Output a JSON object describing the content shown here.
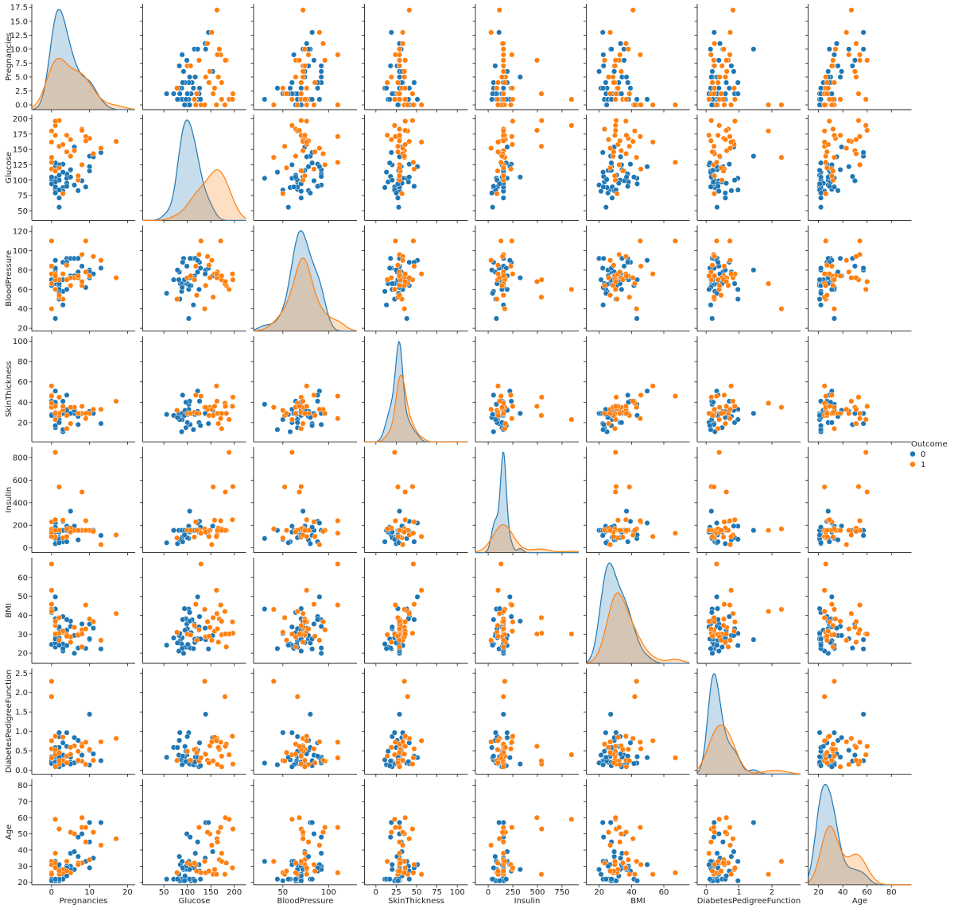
{
  "chart_data": {
    "type": "pairplot",
    "legend_title": "Outcome",
    "variables": [
      {
        "name": "Pregnancies",
        "xlim": [
          -5.2,
          22
        ],
        "xticks": [
          0,
          10,
          20
        ],
        "ylim": [
          -0.85,
          18.1
        ],
        "yticks": [
          {
            "value": 0,
            "label": "0.0"
          },
          2.5,
          {
            "value": 5,
            "label": "5.0"
          },
          7.5,
          {
            "value": 10,
            "label": "10.0"
          },
          12.5,
          {
            "value": 15,
            "label": "15.0"
          },
          17.5
        ]
      },
      {
        "name": "Glucose",
        "xlim": [
          5,
          225
        ],
        "xticks": [
          50,
          100,
          150,
          200
        ],
        "ylim": [
          34.5,
          206.5
        ],
        "yticks": [
          50,
          75,
          100,
          125,
          150,
          175,
          200
        ]
      },
      {
        "name": "BloodPressure",
        "xlim": [
          18,
          131
        ],
        "xticks": [
          50,
          100
        ],
        "ylim": [
          17,
          126
        ],
        "yticks": [
          20,
          40,
          60,
          80,
          100,
          120
        ]
      },
      {
        "name": "SkinThickness",
        "xlim": [
          -14,
          113
        ],
        "xticks": [
          0,
          25,
          50,
          75,
          100
        ],
        "ylim": [
          1,
          105
        ],
        "yticks": [
          20,
          40,
          60,
          80,
          100
        ]
      },
      {
        "name": "Insulin",
        "xlim": [
          -130,
          920
        ],
        "xticks": [
          0,
          250,
          500,
          750
        ],
        "ylim": [
          -42,
          894
        ],
        "yticks": [
          0,
          200,
          400,
          600,
          800
        ]
      },
      {
        "name": "BMI",
        "xlim": [
          12,
          76
        ],
        "xticks": [
          20,
          40,
          60
        ],
        "ylim": [
          14.6,
          70.4
        ],
        "yticks": [
          20,
          30,
          40,
          50,
          60
        ]
      },
      {
        "name": "DiabetesPedigreeFunction",
        "xlim": [
          -0.27,
          2.87
        ],
        "xticks": [
          0,
          1,
          2
        ],
        "ylim": [
          -0.1,
          2.62
        ],
        "yticks": [
          {
            "value": 0,
            "label": "0.0"
          },
          0.5,
          {
            "value": 1,
            "label": "1.0"
          },
          1.5,
          {
            "value": 2,
            "label": "2.0"
          },
          2.5
        ]
      },
      {
        "name": "Age",
        "xlim": [
          11.5,
          96.5
        ],
        "xticks": [
          20,
          40,
          60,
          80
        ],
        "ylim": [
          18.5,
          83.8
        ],
        "yticks": [
          20,
          30,
          40,
          50,
          60,
          70,
          80
        ]
      }
    ],
    "series": [
      {
        "name": "0",
        "color": "#1f77b4",
        "points": [
          [
            1,
            85,
            66,
            29,
            155,
            26.6,
            0.351,
            31
          ],
          [
            1,
            89,
            66,
            23,
            94,
            28.1,
            0.167,
            21
          ],
          [
            5,
            116,
            74,
            29,
            155,
            25.6,
            0.201,
            30
          ],
          [
            10,
            115,
            72,
            29,
            155,
            35.3,
            0.134,
            29
          ],
          [
            4,
            110,
            92,
            29,
            155,
            37.6,
            0.191,
            30
          ],
          [
            10,
            139,
            80,
            29,
            155,
            27.1,
            1.441,
            57
          ],
          [
            1,
            103,
            30,
            38,
            83,
            43.3,
            0.183,
            33
          ],
          [
            3,
            126,
            88,
            41,
            235,
            39.3,
            0.704,
            27
          ],
          [
            8,
            99,
            84,
            29,
            155,
            35.4,
            0.388,
            50
          ],
          [
            1,
            97,
            66,
            15,
            140,
            23.2,
            0.487,
            22
          ],
          [
            13,
            145,
            82,
            19,
            110,
            22.2,
            0.245,
            57
          ],
          [
            5,
            117,
            92,
            29,
            155,
            34.1,
            0.337,
            38
          ],
          [
            3,
            88,
            58,
            11,
            54,
            24.8,
            0.267,
            22
          ],
          [
            6,
            92,
            92,
            29,
            155,
            19.9,
            0.188,
            28
          ],
          [
            10,
            122,
            78,
            31,
            155,
            27.6,
            0.512,
            45
          ],
          [
            4,
            103,
            60,
            33,
            192,
            24.0,
            0.966,
            33
          ],
          [
            11,
            138,
            76,
            29,
            155,
            33.2,
            0.42,
            35
          ],
          [
            2,
            108,
            64,
            29,
            155,
            30.8,
            0.158,
            21
          ],
          [
            2,
            71,
            70,
            27,
            155,
            28.0,
            0.586,
            22
          ],
          [
            7,
            106,
            92,
            18,
            155,
            22.7,
            0.235,
            48
          ],
          [
            0,
            101,
            65,
            28,
            155,
            24.6,
            0.237,
            22
          ],
          [
            1,
            122,
            90,
            51,
            220,
            49.7,
            0.325,
            31
          ],
          [
            7,
            83,
            78,
            26,
            71,
            29.3,
            0.767,
            36
          ],
          [
            2,
            100,
            66,
            20,
            90,
            32.9,
            0.867,
            28
          ],
          [
            3,
            82,
            70,
            29,
            155,
            21.1,
            0.389,
            25
          ],
          [
            0,
            105,
            64,
            41,
            142,
            41.5,
            0.173,
            22
          ],
          [
            2,
            84,
            50,
            23,
            76,
            30.4,
            0.968,
            21
          ],
          [
            1,
            97,
            70,
            40,
            155,
            38.1,
            0.218,
            30
          ],
          [
            5,
            105,
            72,
            29,
            325,
            36.9,
            0.159,
            28
          ],
          [
            9,
            89,
            62,
            29,
            155,
            22.5,
            0.142,
            33
          ],
          [
            3,
            113,
            44,
            13,
            155,
            22.4,
            0.14,
            22
          ],
          [
            1,
            79,
            80,
            25,
            37,
            25.4,
            0.583,
            22
          ],
          [
            4,
            95,
            70,
            32,
            155,
            32.1,
            0.612,
            24
          ],
          [
            2,
            125,
            60,
            20,
            140,
            33.8,
            0.088,
            31
          ],
          [
            6,
            154,
            74,
            32,
            193,
            29.3,
            0.839,
            39
          ],
          [
            1,
            116,
            70,
            28,
            155,
            27.4,
            0.204,
            21
          ],
          [
            2,
            56,
            56,
            28,
            45,
            24.2,
            0.332,
            22
          ],
          [
            0,
            94,
            70,
            27,
            115,
            43.5,
            0.347,
            21
          ],
          [
            4,
            90,
            88,
            47,
            54,
            37.7,
            0.362,
            29
          ],
          [
            1,
            128,
            82,
            17,
            183,
            27.5,
            0.115,
            22
          ]
        ]
      },
      {
        "name": "1",
        "color": "#ff7f0e",
        "points": [
          [
            6,
            148,
            72,
            35,
            155,
            33.6,
            0.627,
            50
          ],
          [
            8,
            183,
            64,
            29,
            155,
            23.3,
            0.672,
            32
          ],
          [
            0,
            137,
            40,
            35,
            168,
            43.1,
            2.288,
            33
          ],
          [
            3,
            78,
            50,
            32,
            88,
            31.0,
            0.248,
            26
          ],
          [
            2,
            197,
            70,
            45,
            543,
            30.5,
            0.158,
            53
          ],
          [
            8,
            125,
            96,
            29,
            155,
            32.3,
            0.232,
            54
          ],
          [
            10,
            168,
            74,
            29,
            155,
            38.0,
            0.537,
            34
          ],
          [
            1,
            189,
            60,
            23,
            846,
            30.1,
            0.398,
            59
          ],
          [
            5,
            166,
            72,
            19,
            175,
            25.8,
            0.587,
            51
          ],
          [
            7,
            100,
            72,
            29,
            155,
            30.0,
            0.484,
            32
          ],
          [
            0,
            118,
            84,
            47,
            230,
            45.8,
            0.551,
            31
          ],
          [
            7,
            107,
            74,
            29,
            155,
            29.6,
            0.254,
            31
          ],
          [
            1,
            115,
            70,
            30,
            96,
            34.6,
            0.529,
            32
          ],
          [
            11,
            143,
            94,
            33,
            146,
            36.6,
            0.254,
            51
          ],
          [
            9,
            171,
            110,
            24,
            240,
            45.4,
            0.721,
            54
          ],
          [
            4,
            173,
            70,
            14,
            168,
            29.7,
            0.361,
            33
          ],
          [
            0,
            180,
            66,
            39,
            155,
            42.0,
            1.893,
            25
          ],
          [
            2,
            155,
            52,
            27,
            540,
            38.7,
            0.24,
            25
          ],
          [
            13,
            152,
            90,
            33,
            29,
            26.8,
            0.731,
            43
          ],
          [
            17,
            163,
            72,
            41,
            114,
            40.9,
            0.817,
            47
          ],
          [
            0,
            129,
            110,
            46,
            130,
            67.1,
            0.319,
            26
          ],
          [
            3,
            158,
            76,
            36,
            245,
            31.6,
            0.851,
            28
          ],
          [
            5,
            139,
            64,
            35,
            140,
            28.6,
            0.411,
            26
          ],
          [
            1,
            196,
            76,
            36,
            249,
            36.5,
            0.875,
            29
          ],
          [
            9,
            164,
            78,
            29,
            155,
            32.8,
            0.148,
            45
          ],
          [
            0,
            162,
            76,
            56,
            100,
            53.2,
            0.759,
            25
          ],
          [
            4,
            146,
            85,
            27,
            100,
            28.9,
            0.189,
            27
          ],
          [
            2,
            120,
            54,
            29,
            155,
            26.8,
            0.455,
            27
          ],
          [
            8,
            181,
            68,
            36,
            495,
            30.1,
            0.615,
            60
          ],
          [
            1,
            173,
            74,
            29,
            155,
            36.8,
            0.088,
            38
          ]
        ]
      }
    ]
  }
}
